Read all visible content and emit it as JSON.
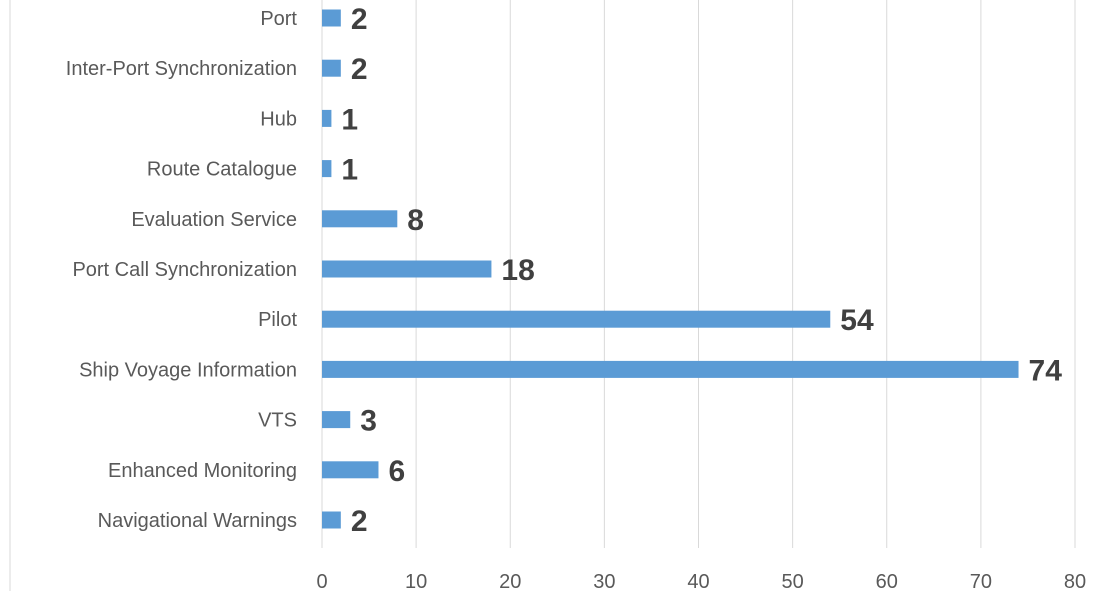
{
  "chart_data": {
    "type": "bar",
    "orientation": "horizontal",
    "categories": [
      "Port",
      "Inter-Port Synchronization",
      "Hub",
      "Route Catalogue",
      "Evaluation Service",
      "Port Call Synchronization",
      "Pilot",
      "Ship Voyage Information",
      "VTS",
      "Enhanced Monitoring",
      "Navigational Warnings"
    ],
    "values": [
      2,
      2,
      1,
      1,
      8,
      18,
      54,
      74,
      3,
      6,
      2
    ],
    "xlim": [
      0,
      80
    ],
    "xticks": [
      0,
      10,
      20,
      30,
      40,
      50,
      60,
      70,
      80
    ],
    "grid": "vertical",
    "data_labels": true,
    "colors": {
      "bar": "#5b9bd5",
      "grid": "#d9d9d9",
      "category_text": "#595959",
      "value_text": "#404040"
    }
  }
}
